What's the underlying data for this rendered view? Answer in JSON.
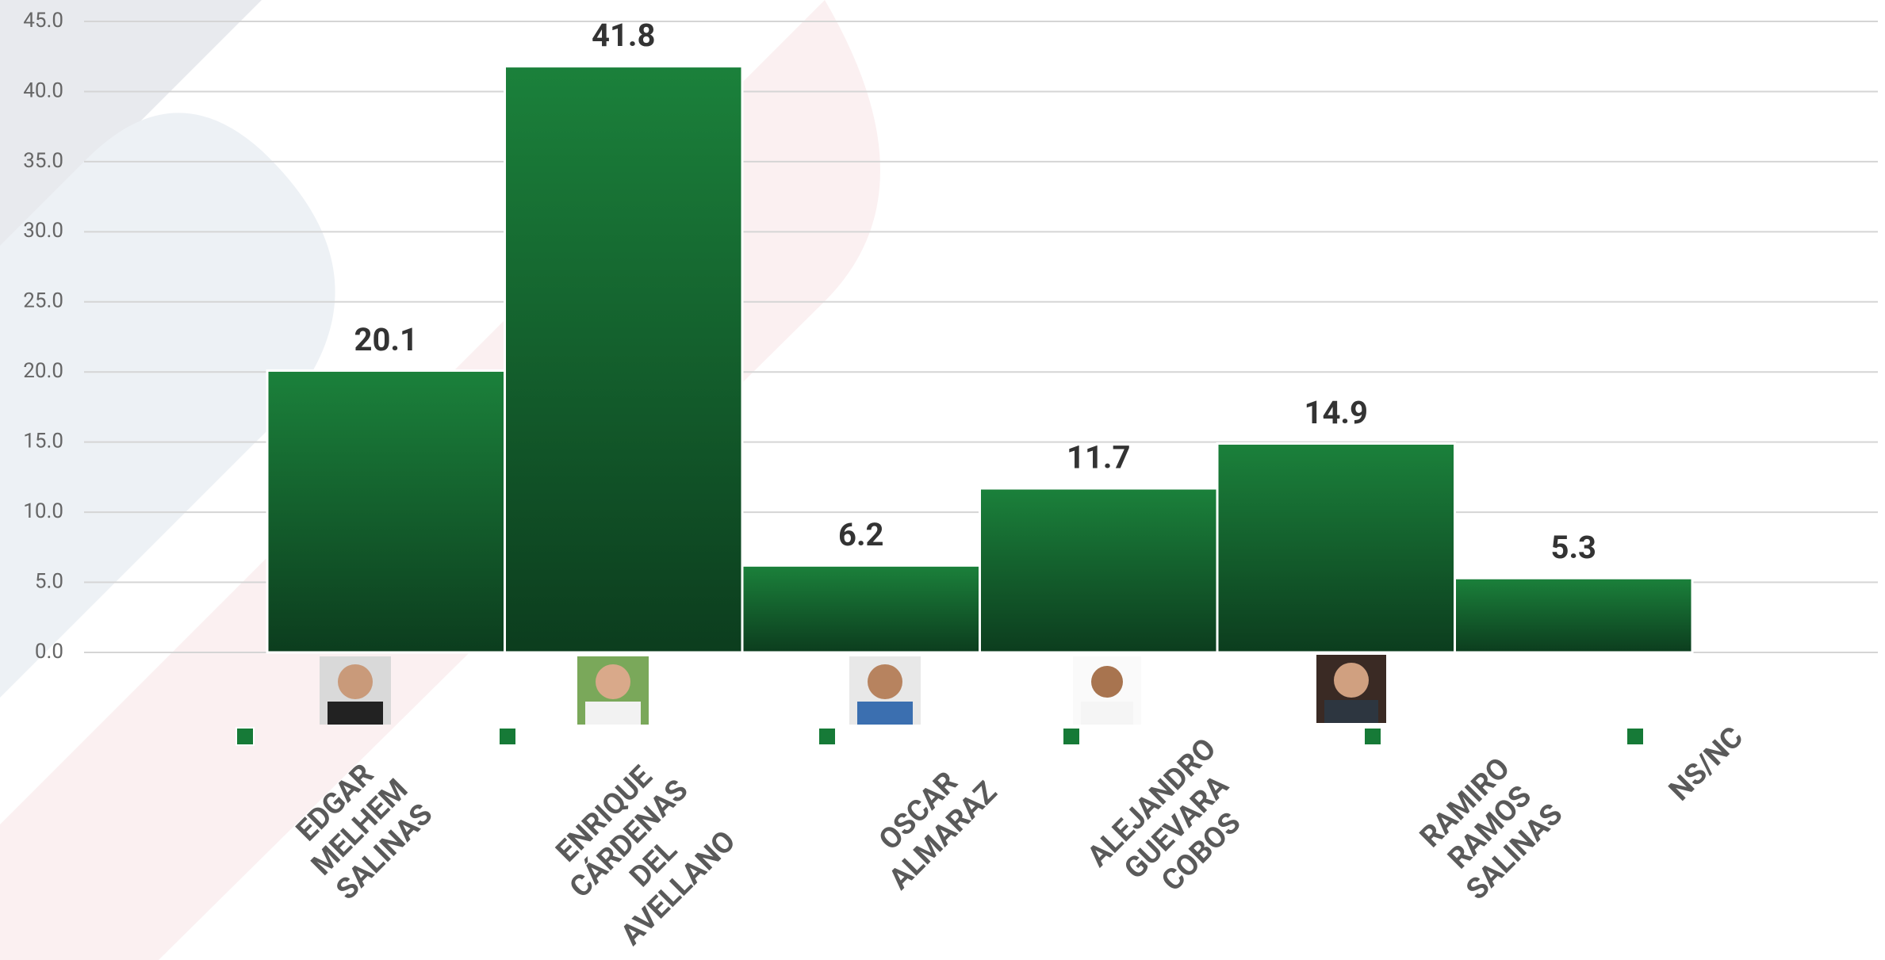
{
  "chart_data": {
    "type": "bar",
    "categories": [
      "EDGAR MELHEM SALINAS",
      "ENRIQUE CÁRDENAS DEL AVELLANO",
      "OSCAR ALMARAZ",
      "ALEJANDRO GUEVARA COBOS",
      "RAMIRO RAMOS SALINAS",
      "NS/NC"
    ],
    "values": [
      20.1,
      41.8,
      6.2,
      11.7,
      14.9,
      5.3
    ],
    "color": "#167a37",
    "ylim": [
      0,
      45
    ],
    "yticks": [
      {
        "value": 0,
        "label": "0.0"
      },
      {
        "value": 5,
        "label": "5.0"
      },
      {
        "value": 10,
        "label": "10.0"
      },
      {
        "value": 15,
        "label": "15.0"
      },
      {
        "value": 20,
        "label": "20.0"
      },
      {
        "value": 25,
        "label": "25.0"
      },
      {
        "value": 30,
        "label": "30.0"
      },
      {
        "value": 35,
        "label": "35.0"
      },
      {
        "value": 40,
        "label": "40.0"
      },
      {
        "value": 45,
        "label": "45.0"
      }
    ],
    "grid": true
  }
}
